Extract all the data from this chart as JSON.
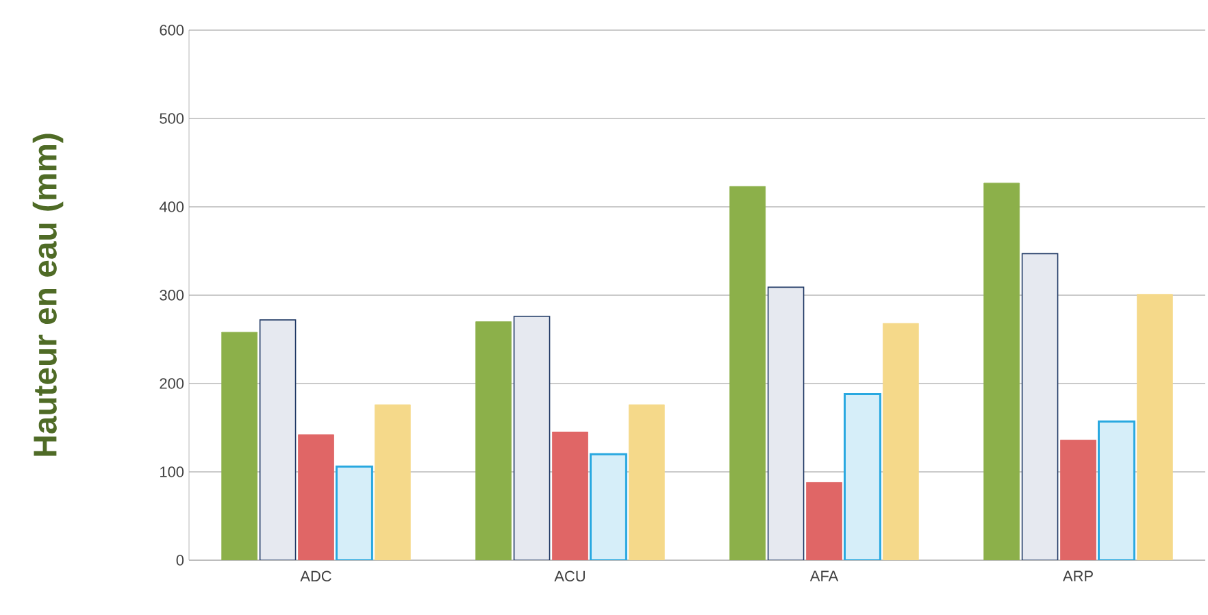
{
  "chart_data": {
    "type": "bar",
    "ylabel": "Hauteur en eau (mm)",
    "categories": [
      "ADC",
      "ACU",
      "AFA",
      "ARP"
    ],
    "series": [
      {
        "color": "#8cb04a",
        "values": [
          258,
          270,
          423,
          427
        ]
      },
      {
        "color": "#e6e9f0",
        "values": [
          272,
          276,
          309,
          347
        ]
      },
      {
        "color": "#e06666",
        "values": [
          142,
          145,
          88,
          136
        ]
      },
      {
        "color": "#d6eef9",
        "values": [
          106,
          120,
          188,
          157
        ]
      },
      {
        "color": "#f5d98a",
        "values": [
          176,
          176,
          268,
          301
        ]
      }
    ],
    "ylim": [
      0,
      600
    ],
    "yticks": [
      0,
      100,
      200,
      300,
      400,
      500,
      600
    ],
    "grid": "y"
  }
}
